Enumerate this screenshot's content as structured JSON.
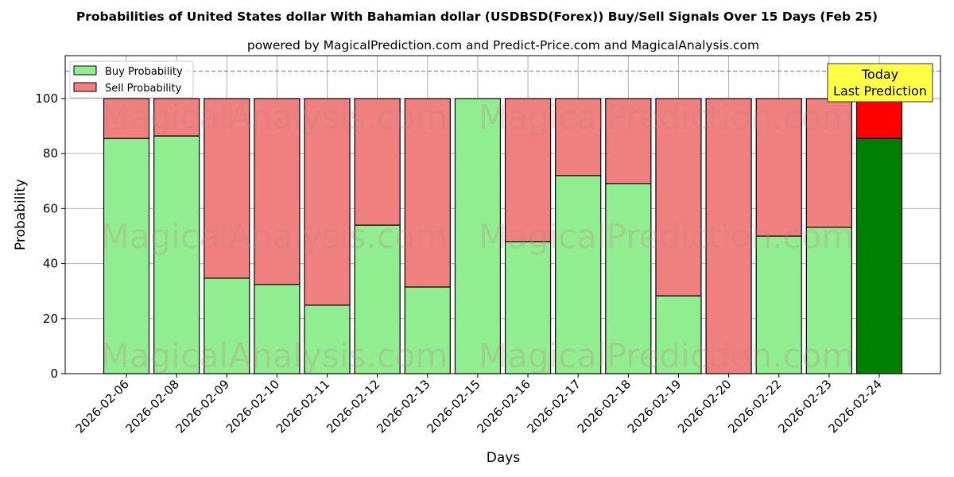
{
  "chart_data": {
    "type": "bar",
    "stacked": true,
    "title": "Probabilities of United States dollar With Bahamian dollar (USDBSD(Forex)) Buy/Sell Signals Over 15 Days (Feb 25)",
    "subtitle": "powered by MagicalPrediction.com and Predict-Price.com and MagicalAnalysis.com",
    "xlabel": "Days",
    "ylabel": "Probability",
    "ylim": [
      0,
      115.6
    ],
    "yticks": [
      0,
      20,
      40,
      60,
      80,
      100
    ],
    "grid": true,
    "legend_position": "top-left",
    "reference_line": 110,
    "categories": [
      "2026-02-06",
      "2026-02-08",
      "2026-02-09",
      "2026-02-10",
      "2026-02-11",
      "2026-02-12",
      "2026-02-13",
      "2026-02-15",
      "2026-02-16",
      "2026-02-17",
      "2026-02-18",
      "2026-02-19",
      "2026-02-20",
      "2026-02-22",
      "2026-02-23",
      "2026-02-24"
    ],
    "series": [
      {
        "name": "Buy Probability",
        "color": "#90ee90",
        "values": [
          85.5,
          86.4,
          34.7,
          32.4,
          24.9,
          54.0,
          31.5,
          100,
          48.0,
          72.0,
          69.1,
          28.3,
          0,
          50.0,
          53.2,
          85.5
        ]
      },
      {
        "name": "Sell Probability",
        "color": "#f08080",
        "values": [
          14.5,
          13.6,
          65.3,
          67.6,
          75.1,
          46.0,
          68.5,
          0,
          52.0,
          28.0,
          30.9,
          71.7,
          100,
          50.0,
          46.8,
          14.5
        ]
      }
    ],
    "highlight": {
      "index": 15,
      "buy_color": "#008000",
      "sell_color": "#ff0000"
    },
    "annotation": {
      "line1": "Today",
      "line2": "Last Prediction",
      "color": "#ffff44"
    },
    "watermarks": [
      "MagicalAnalysis.com",
      "MagicalPrediction.com"
    ]
  }
}
